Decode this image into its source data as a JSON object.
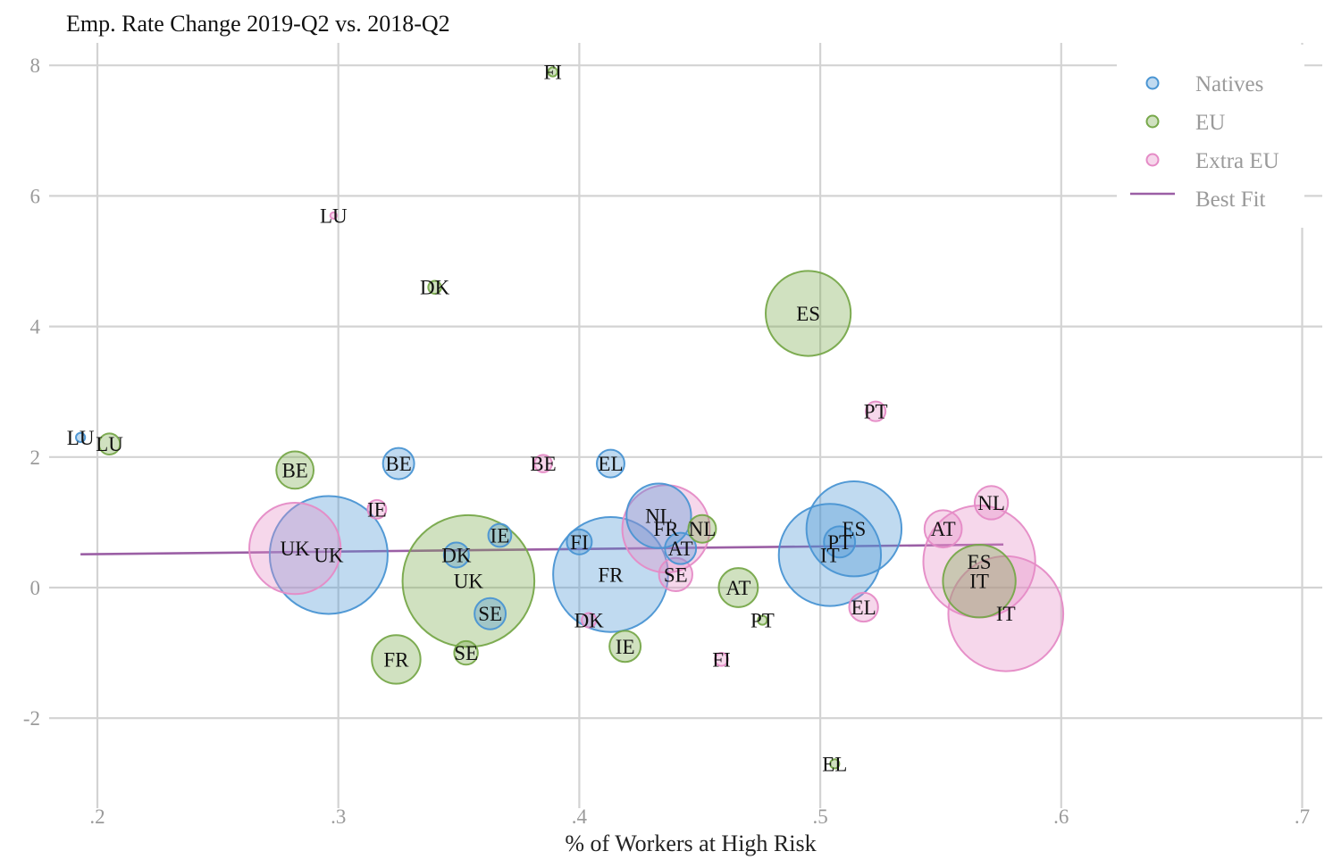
{
  "chart_data": {
    "type": "scatter",
    "title": "Emp. Rate Change 2019-Q2 vs. 2018-Q2",
    "xlabel": "% of Workers at High Risk",
    "ylabel": "",
    "xlim": [
      0.19,
      0.71
    ],
    "ylim": [
      -3.1,
      8.3
    ],
    "x_ticks": [
      0.2,
      0.3,
      0.4,
      0.5,
      0.6,
      0.7
    ],
    "x_tick_labels": [
      ".2",
      ".3",
      ".4",
      ".5",
      ".6",
      ".7"
    ],
    "y_ticks": [
      -2,
      0,
      2,
      4,
      6,
      8
    ],
    "y_tick_labels": [
      "-2",
      "0",
      "2",
      "4",
      "6",
      "8"
    ],
    "grid": true,
    "legend": {
      "position": "top-right",
      "best_fit_label": "Best Fit"
    },
    "best_fit": {
      "x": [
        0.193,
        0.576
      ],
      "y": [
        0.51,
        0.66
      ],
      "color": "#9b5fa5"
    },
    "series": [
      {
        "name": "Natives",
        "color": "#4a95d3",
        "points": [
          {
            "label": "LU",
            "x": 0.193,
            "y": 2.3,
            "size": 0.6
          },
          {
            "label": "BE",
            "x": 0.325,
            "y": 1.9,
            "size": 7
          },
          {
            "label": "UK",
            "x": 0.296,
            "y": 0.5,
            "size": 100
          },
          {
            "label": "DK",
            "x": 0.349,
            "y": 0.5,
            "size": 4.5
          },
          {
            "label": "IE",
            "x": 0.367,
            "y": 0.8,
            "size": 3.8
          },
          {
            "label": "SE",
            "x": 0.363,
            "y": -0.4,
            "size": 7
          },
          {
            "label": "FI",
            "x": 0.4,
            "y": 0.7,
            "size": 4.5
          },
          {
            "label": "EL",
            "x": 0.413,
            "y": 1.9,
            "size": 5.5
          },
          {
            "label": "FR",
            "x": 0.413,
            "y": 0.2,
            "size": 95
          },
          {
            "label": "NL",
            "x": 0.433,
            "y": 1.1,
            "size": 30
          },
          {
            "label": "AT",
            "x": 0.442,
            "y": 0.6,
            "size": 7
          },
          {
            "label": "ES",
            "x": 0.514,
            "y": 0.9,
            "size": 65
          },
          {
            "label": "PT",
            "x": 0.508,
            "y": 0.7,
            "size": 7
          },
          {
            "label": "IT",
            "x": 0.504,
            "y": 0.5,
            "size": 75
          }
        ]
      },
      {
        "name": "EU",
        "color": "#77a84a",
        "points": [
          {
            "label": "FI",
            "x": 0.389,
            "y": 7.9,
            "size": 0.6
          },
          {
            "label": "DK",
            "x": 0.34,
            "y": 4.6,
            "size": 1.2
          },
          {
            "label": "ES",
            "x": 0.495,
            "y": 4.2,
            "size": 52
          },
          {
            "label": "LU",
            "x": 0.205,
            "y": 2.2,
            "size": 3.2
          },
          {
            "label": "BE",
            "x": 0.282,
            "y": 1.8,
            "size": 10
          },
          {
            "label": "UK",
            "x": 0.354,
            "y": 0.1,
            "size": 125
          },
          {
            "label": "NL",
            "x": 0.451,
            "y": 0.9,
            "size": 5.5
          },
          {
            "label": "AT",
            "x": 0.466,
            "y": 0.0,
            "size": 11
          },
          {
            "label": "PT",
            "x": 0.476,
            "y": -0.5,
            "size": 0.6
          },
          {
            "label": "FR",
            "x": 0.324,
            "y": -1.1,
            "size": 17
          },
          {
            "label": "SE",
            "x": 0.353,
            "y": -1.0,
            "size": 4
          },
          {
            "label": "IE",
            "x": 0.419,
            "y": -0.9,
            "size": 7
          },
          {
            "label": "EL",
            "x": 0.506,
            "y": -2.7,
            "size": 0.6
          },
          {
            "label": "IT",
            "x": 0.566,
            "y": 0.1,
            "size": 38
          }
        ]
      },
      {
        "name": "Extra EU",
        "color": "#e58bc6",
        "points": [
          {
            "label": "LU",
            "x": 0.298,
            "y": 5.7,
            "size": 0.3
          },
          {
            "label": "IE",
            "x": 0.316,
            "y": 1.2,
            "size": 2.5
          },
          {
            "label": "BE",
            "x": 0.385,
            "y": 1.9,
            "size": 2.2
          },
          {
            "label": "UK",
            "x": 0.282,
            "y": 0.6,
            "size": 60
          },
          {
            "label": "DK",
            "x": 0.404,
            "y": -0.5,
            "size": 1.5
          },
          {
            "label": "FR",
            "x": 0.436,
            "y": 0.9,
            "size": 55
          },
          {
            "label": "SE",
            "x": 0.44,
            "y": 0.2,
            "size": 8
          },
          {
            "label": "FI",
            "x": 0.459,
            "y": -1.1,
            "size": 1.2
          },
          {
            "label": "PT",
            "x": 0.523,
            "y": 2.7,
            "size": 2.8
          },
          {
            "label": "EL",
            "x": 0.518,
            "y": -0.3,
            "size": 6
          },
          {
            "label": "AT",
            "x": 0.551,
            "y": 0.9,
            "size": 10
          },
          {
            "label": "NL",
            "x": 0.571,
            "y": 1.3,
            "size": 8
          },
          {
            "label": "ES",
            "x": 0.566,
            "y": 0.4,
            "size": 90
          },
          {
            "label": "IT",
            "x": 0.577,
            "y": -0.4,
            "size": 95
          }
        ]
      }
    ]
  }
}
